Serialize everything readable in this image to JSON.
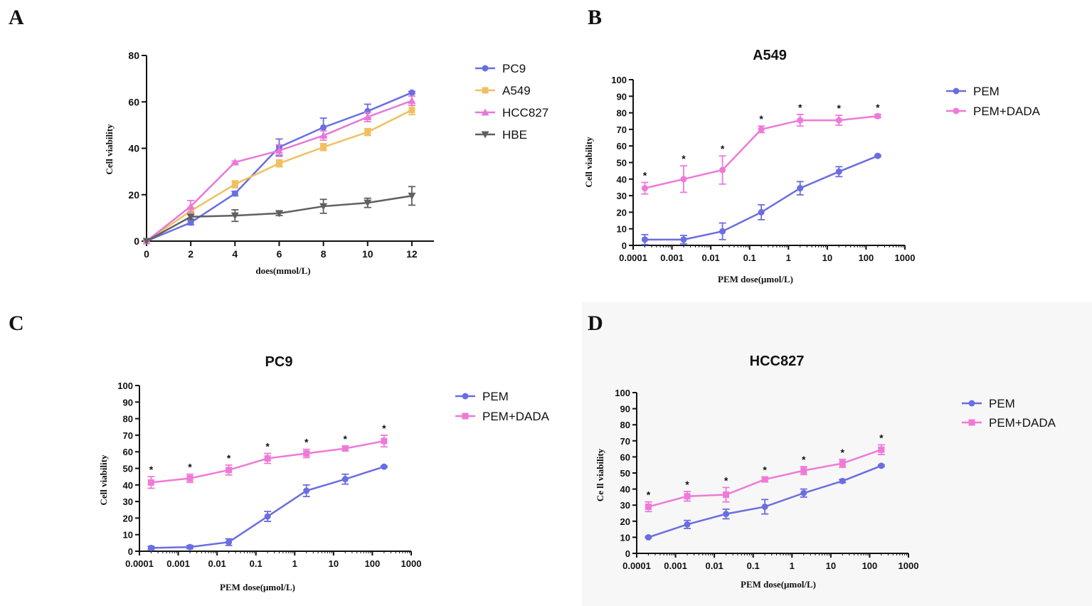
{
  "chart_data": [
    {
      "panel": "A",
      "type": "line",
      "title": "",
      "xlabel": "does(mmol/L)",
      "ylabel": "Cell viability",
      "x": [
        0,
        2,
        4,
        6,
        8,
        10,
        12
      ],
      "xticks": [
        "0",
        "2",
        "4",
        "6",
        "8",
        "10",
        "12"
      ],
      "yticks": [
        "0",
        "20",
        "40",
        "60",
        "80"
      ],
      "xlim": [
        0,
        13
      ],
      "ylim": [
        0,
        80
      ],
      "grid": false,
      "legend_position": "right",
      "series": [
        {
          "name": "PC9",
          "color": "#6a6ee0",
          "marker": "circle",
          "values": [
            0,
            8,
            20.5,
            40.5,
            49,
            56,
            64
          ],
          "errors": [
            0,
            1,
            1,
            3.5,
            4,
            3,
            0.5
          ]
        },
        {
          "name": "A549",
          "color": "#f0c060",
          "marker": "square",
          "values": [
            0,
            13,
            24.5,
            33.5,
            40.5,
            47,
            56.5
          ],
          "errors": [
            0,
            1.5,
            1.5,
            1.5,
            1.5,
            1.5,
            2
          ]
        },
        {
          "name": "HCC827",
          "color": "#e878d8",
          "marker": "triangle-up",
          "values": [
            0,
            15,
            34,
            39,
            45.5,
            53.5,
            60.5
          ],
          "errors": [
            0,
            2.5,
            0.5,
            2.5,
            2,
            2,
            2
          ]
        },
        {
          "name": "HBE",
          "color": "#606060",
          "marker": "triangle-down",
          "values": [
            0,
            10.5,
            11,
            12,
            15,
            16.5,
            19.5
          ],
          "errors": [
            0,
            1,
            2.5,
            1,
            3,
            2,
            4
          ]
        }
      ]
    },
    {
      "panel": "B",
      "type": "line",
      "title": "A549",
      "xlabel": "PEM dose(μmol/L)",
      "ylabel": "Cell viability",
      "x": [
        0.0002,
        0.002,
        0.02,
        0.2,
        2,
        20,
        200
      ],
      "xscale": "log",
      "xticks": [
        "0.0001",
        "0.001",
        "0.01",
        "0.1",
        "1",
        "10",
        "100",
        "1000"
      ],
      "yticks": [
        "0",
        "10",
        "20",
        "30",
        "40",
        "50",
        "60",
        "70",
        "80",
        "90",
        "100"
      ],
      "ylim": [
        0,
        100
      ],
      "grid": false,
      "legend_position": "top-right",
      "significance_marker": "*",
      "series": [
        {
          "name": "PEM",
          "color": "#6a6ee0",
          "marker": "circle",
          "values": [
            3.5,
            3.5,
            8.5,
            20,
            34.5,
            44.5,
            54
          ],
          "errors": [
            3,
            2.5,
            5,
            4.5,
            4,
            3,
            0.5
          ]
        },
        {
          "name": "PEM+DADA",
          "color": "#ee7ad8",
          "marker": "circle",
          "values": [
            34.5,
            40,
            45.5,
            70,
            75.5,
            75.5,
            78
          ],
          "errors": [
            3.5,
            8,
            8.5,
            2,
            3.5,
            3,
            1
          ]
        }
      ]
    },
    {
      "panel": "C",
      "type": "line",
      "title": "PC9",
      "xlabel": "PEM dose(μmol/L)",
      "ylabel": "Cell viability",
      "x": [
        0.0002,
        0.002,
        0.02,
        0.2,
        2,
        20,
        200
      ],
      "xscale": "log",
      "xticks": [
        "0.0001",
        "0.001",
        "0.01",
        "0.1",
        "1",
        "10",
        "100",
        "1000"
      ],
      "yticks": [
        "0",
        "10",
        "20",
        "30",
        "40",
        "50",
        "60",
        "70",
        "80",
        "90",
        "100"
      ],
      "ylim": [
        0,
        100
      ],
      "grid": false,
      "legend_position": "top-right",
      "significance_marker": "*",
      "series": [
        {
          "name": "PEM",
          "color": "#6a6ee0",
          "marker": "circle",
          "values": [
            2,
            2.5,
            5.5,
            21,
            36.5,
            43.5,
            51
          ],
          "errors": [
            1,
            1,
            2,
            3,
            3.5,
            3,
            0.5
          ]
        },
        {
          "name": "PEM+DADA",
          "color": "#ee7ad8",
          "marker": "square",
          "values": [
            41.5,
            44,
            49,
            56,
            59,
            62,
            66.5
          ],
          "errors": [
            3.5,
            2.5,
            3,
            3,
            2.5,
            1.5,
            3.5
          ]
        }
      ]
    },
    {
      "panel": "D",
      "type": "line",
      "title": "HCC827",
      "xlabel": "PEM dose(μmol/L)",
      "ylabel": "Ce ll viability",
      "x": [
        0.0002,
        0.002,
        0.02,
        0.2,
        2,
        20,
        200
      ],
      "xscale": "log",
      "xticks": [
        "0.0001",
        "0.001",
        "0.01",
        "0.1",
        "1",
        "10",
        "100",
        "1000"
      ],
      "yticks": [
        "0",
        "10",
        "20",
        "30",
        "40",
        "50",
        "60",
        "70",
        "80",
        "90",
        "100"
      ],
      "ylim": [
        0,
        100
      ],
      "grid": false,
      "legend_position": "top-right",
      "significance_marker": "*",
      "series": [
        {
          "name": "PEM",
          "color": "#6a6ee0",
          "marker": "circle",
          "values": [
            10,
            18,
            24.5,
            29,
            37.5,
            45,
            54.5
          ],
          "errors": [
            0.5,
            2.5,
            3,
            4.5,
            2.5,
            1,
            0.5
          ]
        },
        {
          "name": "PEM+DADA",
          "color": "#ee7ad8",
          "marker": "square",
          "values": [
            29,
            35.5,
            36.5,
            46,
            51.5,
            56,
            64.5
          ],
          "errors": [
            3,
            3,
            4.5,
            1.5,
            2.5,
            2.5,
            3
          ]
        }
      ]
    }
  ]
}
